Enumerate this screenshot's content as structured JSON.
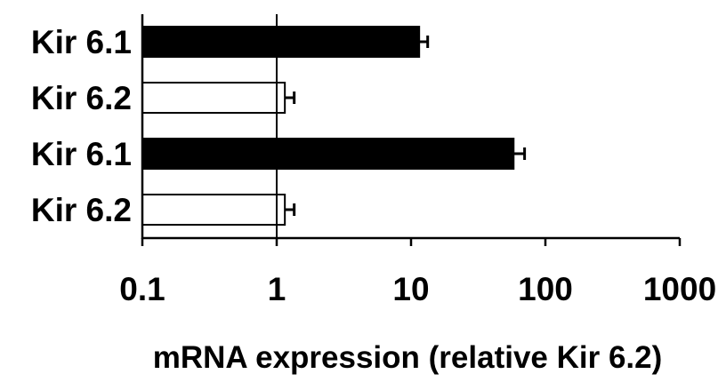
{
  "chart_data": {
    "type": "bar",
    "orientation": "horizontal",
    "categories": [
      "Kir 6.1",
      "Kir 6.2",
      "Kir 6.1",
      "Kir 6.2"
    ],
    "values": [
      11.5,
      1.15,
      58,
      1.15
    ],
    "errors": [
      1.8,
      0.2,
      12,
      0.2
    ],
    "fills": [
      "#000000",
      "#ffffff",
      "#000000",
      "#ffffff"
    ],
    "x_scale": "log",
    "xlim": [
      0.1,
      1000
    ],
    "x_ticks": [
      0.1,
      1,
      10,
      100,
      1000
    ],
    "x_tick_labels": [
      "0.1",
      "1",
      "10",
      "100",
      "1000"
    ],
    "reference_line": 1,
    "xlabel": "mRNA expression (relative Kir 6.2)",
    "grid": false,
    "legend": "none"
  }
}
